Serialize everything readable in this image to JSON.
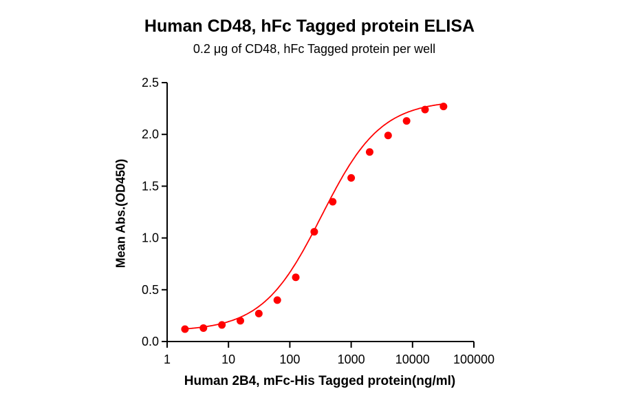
{
  "title": "Human CD48, hFc Tagged protein ELISA",
  "subtitle": "0.2 μg of CD48, hFc Tagged protein per well",
  "chart_data": {
    "type": "scatter",
    "title": "Human CD48, hFc Tagged protein ELISA",
    "subtitle": "0.2 μg of CD48, hFc Tagged protein per well",
    "xlabel": "Human 2B4, mFc-His Tagged protein(ng/ml)",
    "ylabel": "Mean Abs.(OD450)",
    "xscale": "log",
    "xlim": [
      1,
      100000
    ],
    "ylim": [
      0,
      2.5
    ],
    "xticks": [
      "1",
      "10",
      "100",
      "1000",
      "10000",
      "100000"
    ],
    "yticks": [
      "0.0",
      "0.5",
      "1.0",
      "1.5",
      "2.0",
      "2.5"
    ],
    "grid": false,
    "legend": null,
    "series": [
      {
        "name": "Human 2B4, mFc-His Tagged protein",
        "color": "#ff0000",
        "x": [
          1.953,
          3.906,
          7.8125,
          15.625,
          31.25,
          62.5,
          125,
          250,
          500,
          1000,
          2000,
          4000,
          8000,
          16000,
          32000
        ],
        "y": [
          0.12,
          0.13,
          0.16,
          0.2,
          0.27,
          0.4,
          0.62,
          1.06,
          1.35,
          1.58,
          1.83,
          1.99,
          2.13,
          2.24,
          2.27
        ],
        "fit": "4PL sigmoid curve"
      }
    ]
  }
}
